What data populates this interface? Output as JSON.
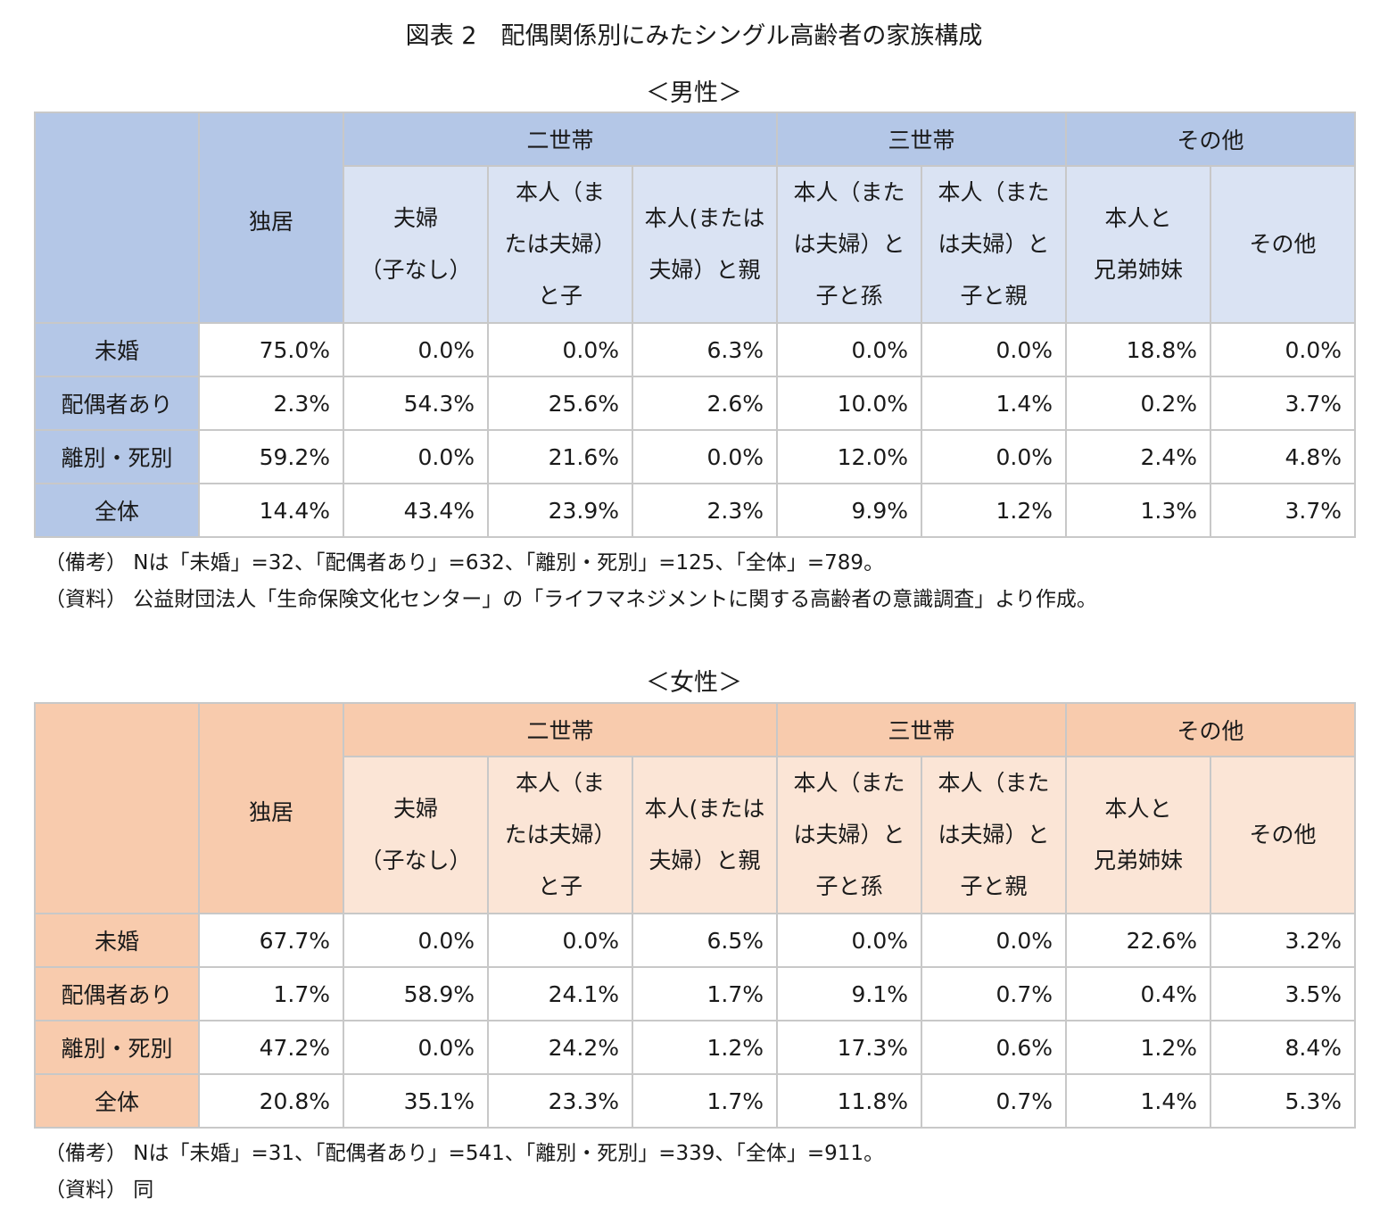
{
  "title": "図表 2　配偶関係別にみたシングル高齢者の家族構成",
  "header": {
    "solo": "独居",
    "group_nisetai": "二世帯",
    "group_sansetai": "三世帯",
    "group_sonota": "その他",
    "sub": [
      [
        "夫婦",
        "（子なし）"
      ],
      [
        "本人（ま",
        "たは夫婦）",
        "と子"
      ],
      [
        "本人(または",
        "夫婦）と親"
      ],
      [
        "本人（また",
        "は夫婦）と",
        "子と孫"
      ],
      [
        "本人（また",
        "は夫婦）と",
        "子と親"
      ],
      [
        "本人と",
        "兄弟姉妹"
      ],
      [
        "その他"
      ]
    ]
  },
  "male": {
    "subtitle": "＜男性＞",
    "rows": [
      {
        "label": "未婚",
        "values": [
          "75.0%",
          "0.0%",
          "0.0%",
          "6.3%",
          "0.0%",
          "0.0%",
          "18.8%",
          "0.0%"
        ]
      },
      {
        "label": "配偶者あり",
        "values": [
          "2.3%",
          "54.3%",
          "25.6%",
          "2.6%",
          "10.0%",
          "1.4%",
          "0.2%",
          "3.7%"
        ]
      },
      {
        "label": "離別・死別",
        "values": [
          "59.2%",
          "0.0%",
          "21.6%",
          "0.0%",
          "12.0%",
          "0.0%",
          "2.4%",
          "4.8%"
        ]
      },
      {
        "label": "全体",
        "values": [
          "14.4%",
          "43.4%",
          "23.9%",
          "2.3%",
          "9.9%",
          "1.2%",
          "1.3%",
          "3.7%"
        ]
      }
    ],
    "note1": "（備考）  Nは「未婚」=32、「配偶者あり」=632、「離別・死別」=125、「全体」=789。",
    "note2": "（資料）  公益財団法人「生命保険文化センター」の「ライフマネジメントに関する高齢者の意識調査」より作成。"
  },
  "female": {
    "subtitle": "＜女性＞",
    "rows": [
      {
        "label": "未婚",
        "values": [
          "67.7%",
          "0.0%",
          "0.0%",
          "6.5%",
          "0.0%",
          "0.0%",
          "22.6%",
          "3.2%"
        ]
      },
      {
        "label": "配偶者あり",
        "values": [
          "1.7%",
          "58.9%",
          "24.1%",
          "1.7%",
          "9.1%",
          "0.7%",
          "0.4%",
          "3.5%"
        ]
      },
      {
        "label": "離別・死別",
        "values": [
          "47.2%",
          "0.0%",
          "24.2%",
          "1.2%",
          "17.3%",
          "0.6%",
          "1.2%",
          "8.4%"
        ]
      },
      {
        "label": "全体",
        "values": [
          "20.8%",
          "35.1%",
          "23.3%",
          "1.7%",
          "11.8%",
          "0.7%",
          "1.4%",
          "5.3%"
        ]
      }
    ],
    "note1": "（備考）  Nは「未婚」=31、「配偶者あり」=541、「離別・死別」=339、「全体」=911。",
    "note2": "（資料）  同"
  },
  "colors": {
    "male_dark": "#b4c7e7",
    "male_light": "#dae3f3",
    "female_dark": "#f8cbad",
    "female_light": "#fbe5d6",
    "border": "#c8c8c8"
  }
}
